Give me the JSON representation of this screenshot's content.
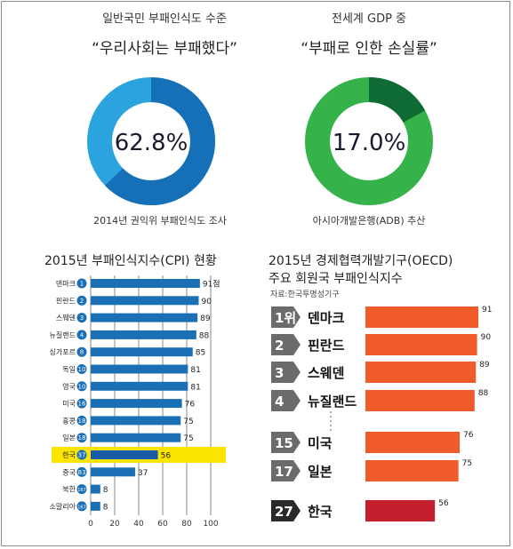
{
  "donuts": [
    {
      "title": "일반국민 부패인식도 수준",
      "quote": "“우리사회는 부패했다”",
      "value": 62.8,
      "center_label": "62.8%",
      "source": "2014년 권익위 부패인식도 조사",
      "colors": {
        "value": "#1570b8",
        "rest": "#2aa3df"
      }
    },
    {
      "title": "전세계 GDP 중",
      "quote": "“부패로 인한 손실률”",
      "value": 17.0,
      "center_label": "17.0%",
      "source": "아시아개발은행(ADB) 추산",
      "colors": {
        "value": "#0d6b33",
        "rest": "#35b24a"
      }
    }
  ],
  "cpi_chart": {
    "title": "2015년 부패인식지수(CPI) 현황",
    "xlim": [
      0,
      100
    ],
    "ticks": [
      "0",
      "20",
      "40",
      "60",
      "80",
      "100"
    ],
    "bar_color": "#1a6fb5",
    "highlight_color": "#fbe400",
    "highlight_bar_color": "#1a5da6",
    "rows": [
      {
        "country": "덴마크",
        "rank": "1",
        "value": 91,
        "label": "91점"
      },
      {
        "country": "핀란드",
        "rank": "2",
        "value": 90,
        "label": "90"
      },
      {
        "country": "스웨덴",
        "rank": "3",
        "value": 89,
        "label": "89"
      },
      {
        "country": "뉴질랜드",
        "rank": "4",
        "value": 88,
        "label": "88"
      },
      {
        "country": "싱가포르",
        "rank": "8",
        "value": 85,
        "label": "85"
      },
      {
        "country": "독일",
        "rank": "10",
        "value": 81,
        "label": "81"
      },
      {
        "country": "영국",
        "rank": "10",
        "value": 81,
        "label": "81"
      },
      {
        "country": "미국",
        "rank": "16",
        "value": 76,
        "label": "76"
      },
      {
        "country": "홍콩",
        "rank": "18",
        "value": 75,
        "label": "75"
      },
      {
        "country": "일본",
        "rank": "18",
        "value": 75,
        "label": "75"
      },
      {
        "country": "한국",
        "rank": "37",
        "value": 56,
        "label": "56",
        "highlight": true
      },
      {
        "country": "중국",
        "rank": "83",
        "value": 37,
        "label": "37"
      },
      {
        "country": "북한",
        "rank": "167",
        "value": 8,
        "label": "8"
      },
      {
        "country": "소말리아",
        "rank": "167",
        "value": 8,
        "label": "8"
      }
    ]
  },
  "oecd_chart": {
    "title_line1": "2015년 경제협력개발기구(OECD)",
    "title_line2": "주요 회원국 부패인식지수",
    "source": "자료:한국투명성기구",
    "bar_color": "#ef5b2b",
    "highlight_bar_color": "#c41f2c",
    "badge_color": "#6b6b6b",
    "highlight_badge_color": "#2a2a2a",
    "rows": [
      {
        "rank": "1위",
        "country": "덴마크",
        "value": 91,
        "label": "91"
      },
      {
        "rank": "2",
        "country": "핀란드",
        "value": 90,
        "label": "90"
      },
      {
        "rank": "3",
        "country": "스웨덴",
        "value": 89,
        "label": "89"
      },
      {
        "rank": "4",
        "country": "뉴질랜드",
        "value": 88,
        "label": "88"
      },
      {
        "rank": "15",
        "country": "미국",
        "value": 76,
        "label": "76"
      },
      {
        "rank": "17",
        "country": "일본",
        "value": 75,
        "label": "75"
      },
      {
        "rank": "27",
        "country": "한국",
        "value": 56,
        "label": "56",
        "highlight": true
      }
    ]
  },
  "chart_data": [
    {
      "type": "pie",
      "title": "일반국민 부패인식도 수준",
      "subtitle": "“우리사회는 부패했다”",
      "categories": [
        "우리사회는 부패했다"
      ],
      "values": [
        62.8
      ],
      "unit": "%",
      "source": "2014년 권익위 부패인식도 조사"
    },
    {
      "type": "pie",
      "title": "전세계 GDP 중",
      "subtitle": "“부패로 인한 손실률”",
      "categories": [
        "부패로 인한 손실률"
      ],
      "values": [
        17.0
      ],
      "unit": "%",
      "source": "아시아개발은행(ADB) 추산"
    },
    {
      "type": "bar",
      "orientation": "horizontal",
      "title": "2015년 부패인식지수(CPI) 현황",
      "categories": [
        "덴마크",
        "핀란드",
        "스웨덴",
        "뉴질랜드",
        "싱가포르",
        "독일",
        "영국",
        "미국",
        "홍콩",
        "일본",
        "한국",
        "중국",
        "북한",
        "소말리아"
      ],
      "ranks": [
        1,
        2,
        3,
        4,
        8,
        10,
        10,
        16,
        18,
        18,
        37,
        83,
        167,
        167
      ],
      "values": [
        91,
        90,
        89,
        88,
        85,
        81,
        81,
        76,
        75,
        75,
        56,
        37,
        8,
        8
      ],
      "xlim": [
        0,
        100
      ],
      "highlight": "한국"
    },
    {
      "type": "bar",
      "orientation": "horizontal",
      "title": "2015년 경제협력개발기구(OECD) 주요 회원국 부패인식지수",
      "categories": [
        "덴마크",
        "핀란드",
        "스웨덴",
        "뉴질랜드",
        "미국",
        "일본",
        "한국"
      ],
      "ranks": [
        1,
        2,
        3,
        4,
        15,
        17,
        27
      ],
      "values": [
        91,
        90,
        89,
        88,
        76,
        75,
        56
      ],
      "source": "자료:한국투명성기구",
      "highlight": "한국"
    }
  ]
}
